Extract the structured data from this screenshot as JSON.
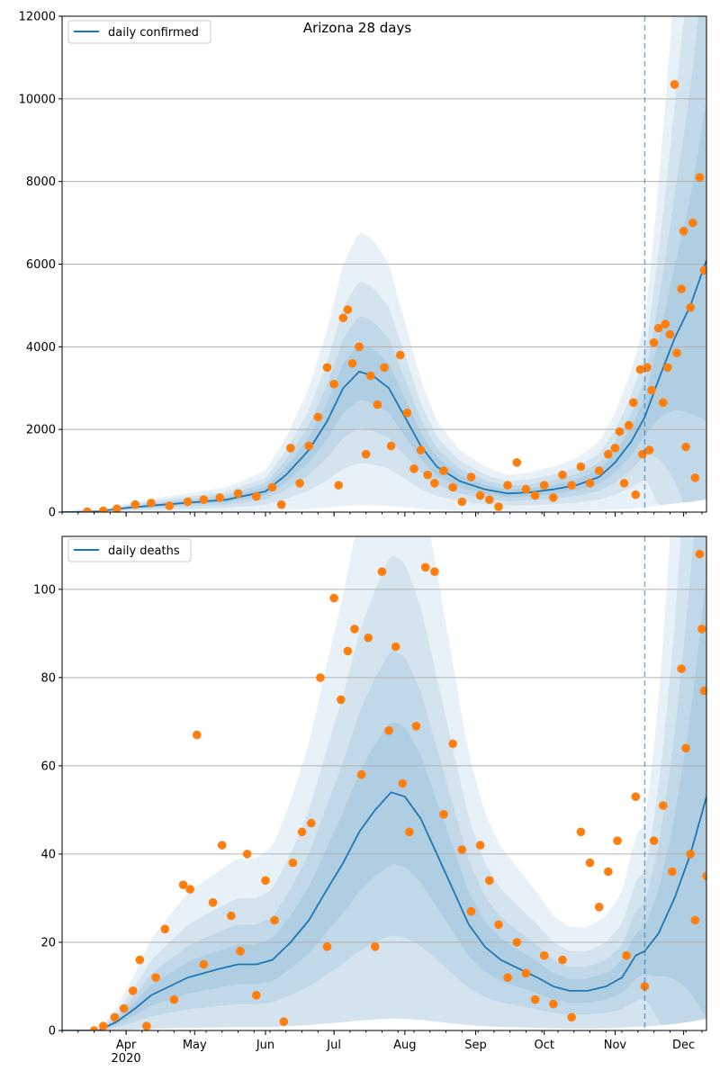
{
  "chart_data": [
    {
      "type": "line",
      "title": "Arizona 28 days",
      "xlabel": "",
      "ylabel": "",
      "ylim": [
        0,
        12000
      ],
      "yticks": [
        0,
        2000,
        4000,
        6000,
        8000,
        10000,
        12000
      ],
      "x_range": [
        "2020-03-04",
        "2020-12-11"
      ],
      "forecast_start": "2020-11-14",
      "grid": "horizontal",
      "legend": {
        "position": "top-left",
        "entries": [
          "daily confirmed"
        ]
      },
      "series": [
        {
          "name": "daily confirmed",
          "kind": "line",
          "points": [
            [
              "2020-03-04",
              0
            ],
            [
              "2020-03-20",
              20
            ],
            [
              "2020-04-01",
              100
            ],
            [
              "2020-04-15",
              170
            ],
            [
              "2020-05-01",
              240
            ],
            [
              "2020-05-15",
              300
            ],
            [
              "2020-06-01",
              500
            ],
            [
              "2020-06-10",
              900
            ],
            [
              "2020-06-20",
              1500
            ],
            [
              "2020-06-28",
              2200
            ],
            [
              "2020-07-05",
              3000
            ],
            [
              "2020-07-12",
              3400
            ],
            [
              "2020-07-18",
              3300
            ],
            [
              "2020-07-25",
              3000
            ],
            [
              "2020-08-01",
              2300
            ],
            [
              "2020-08-08",
              1600
            ],
            [
              "2020-08-15",
              1100
            ],
            [
              "2020-08-25",
              750
            ],
            [
              "2020-09-05",
              550
            ],
            [
              "2020-09-15",
              450
            ],
            [
              "2020-09-25",
              480
            ],
            [
              "2020-10-05",
              550
            ],
            [
              "2020-10-15",
              650
            ],
            [
              "2020-10-25",
              850
            ],
            [
              "2020-11-01",
              1200
            ],
            [
              "2020-11-08",
              1700
            ],
            [
              "2020-11-14",
              2300
            ],
            [
              "2020-11-20",
              3200
            ],
            [
              "2020-11-27",
              4200
            ],
            [
              "2020-12-04",
              5000
            ],
            [
              "2020-12-11",
              6100
            ]
          ]
        },
        {
          "name": "",
          "kind": "scatter",
          "points": [
            [
              "2020-03-15",
              10
            ],
            [
              "2020-03-22",
              30
            ],
            [
              "2020-03-28",
              80
            ],
            [
              "2020-04-05",
              180
            ],
            [
              "2020-04-12",
              220
            ],
            [
              "2020-04-20",
              150
            ],
            [
              "2020-04-28",
              250
            ],
            [
              "2020-05-05",
              300
            ],
            [
              "2020-05-12",
              350
            ],
            [
              "2020-05-20",
              450
            ],
            [
              "2020-05-28",
              380
            ],
            [
              "2020-06-04",
              600
            ],
            [
              "2020-06-08",
              180
            ],
            [
              "2020-06-12",
              1550
            ],
            [
              "2020-06-16",
              700
            ],
            [
              "2020-06-20",
              1600
            ],
            [
              "2020-06-24",
              2300
            ],
            [
              "2020-06-28",
              3500
            ],
            [
              "2020-07-01",
              3100
            ],
            [
              "2020-07-03",
              650
            ],
            [
              "2020-07-05",
              4700
            ],
            [
              "2020-07-07",
              4900
            ],
            [
              "2020-07-09",
              3600
            ],
            [
              "2020-07-12",
              4000
            ],
            [
              "2020-07-15",
              1400
            ],
            [
              "2020-07-17",
              3300
            ],
            [
              "2020-07-20",
              2600
            ],
            [
              "2020-07-23",
              3500
            ],
            [
              "2020-07-26",
              1600
            ],
            [
              "2020-07-30",
              3800
            ],
            [
              "2020-08-02",
              2400
            ],
            [
              "2020-08-05",
              1050
            ],
            [
              "2020-08-08",
              1500
            ],
            [
              "2020-08-11",
              900
            ],
            [
              "2020-08-14",
              700
            ],
            [
              "2020-08-18",
              1000
            ],
            [
              "2020-08-22",
              600
            ],
            [
              "2020-08-26",
              250
            ],
            [
              "2020-08-30",
              850
            ],
            [
              "2020-09-03",
              400
            ],
            [
              "2020-09-07",
              300
            ],
            [
              "2020-09-11",
              130
            ],
            [
              "2020-09-15",
              650
            ],
            [
              "2020-09-19",
              1200
            ],
            [
              "2020-09-23",
              550
            ],
            [
              "2020-09-27",
              400
            ],
            [
              "2020-10-01",
              650
            ],
            [
              "2020-10-05",
              350
            ],
            [
              "2020-10-09",
              900
            ],
            [
              "2020-10-13",
              650
            ],
            [
              "2020-10-17",
              1100
            ],
            [
              "2020-10-21",
              700
            ],
            [
              "2020-10-25",
              1000
            ],
            [
              "2020-10-29",
              1400
            ],
            [
              "2020-11-01",
              1550
            ],
            [
              "2020-11-03",
              1950
            ],
            [
              "2020-11-05",
              700
            ],
            [
              "2020-11-07",
              2100
            ],
            [
              "2020-11-09",
              2650
            ],
            [
              "2020-11-10",
              420
            ],
            [
              "2020-11-12",
              3450
            ],
            [
              "2020-11-13",
              1400
            ],
            [
              "2020-11-15",
              3500
            ],
            [
              "2020-11-16",
              1500
            ],
            [
              "2020-11-17",
              2950
            ],
            [
              "2020-11-18",
              4100
            ],
            [
              "2020-11-20",
              4450
            ],
            [
              "2020-11-22",
              2650
            ],
            [
              "2020-11-23",
              4550
            ],
            [
              "2020-11-24",
              3500
            ],
            [
              "2020-11-25",
              4300
            ],
            [
              "2020-11-27",
              10350
            ],
            [
              "2020-11-28",
              3850
            ],
            [
              "2020-11-30",
              5400
            ],
            [
              "2020-12-01",
              6800
            ],
            [
              "2020-12-02",
              1580
            ],
            [
              "2020-12-04",
              4950
            ],
            [
              "2020-12-05",
              7000
            ],
            [
              "2020-12-06",
              830
            ],
            [
              "2020-12-08",
              8100
            ],
            [
              "2020-12-10",
              5850
            ]
          ]
        }
      ]
    },
    {
      "type": "line",
      "title": "",
      "xlabel": "",
      "ylabel": "",
      "ylim": [
        0,
        112
      ],
      "yticks": [
        0,
        20,
        40,
        60,
        80,
        100
      ],
      "x_range": [
        "2020-03-04",
        "2020-12-11"
      ],
      "x_tick_labels": [
        "Apr\n2020",
        "May",
        "Jun",
        "Jul",
        "Aug",
        "Sep",
        "Oct",
        "Nov",
        "Dec"
      ],
      "forecast_start": "2020-11-14",
      "grid": "horizontal",
      "legend": {
        "position": "top-left",
        "entries": [
          "daily deaths"
        ]
      },
      "series": [
        {
          "name": "daily deaths",
          "kind": "line",
          "points": [
            [
              "2020-03-04",
              0
            ],
            [
              "2020-03-20",
              0
            ],
            [
              "2020-03-28",
              2
            ],
            [
              "2020-04-05",
              5
            ],
            [
              "2020-04-12",
              8
            ],
            [
              "2020-04-20",
              10
            ],
            [
              "2020-04-28",
              12
            ],
            [
              "2020-05-05",
              13
            ],
            [
              "2020-05-12",
              14
            ],
            [
              "2020-05-20",
              15
            ],
            [
              "2020-05-28",
              15
            ],
            [
              "2020-06-04",
              16
            ],
            [
              "2020-06-12",
              20
            ],
            [
              "2020-06-20",
              25
            ],
            [
              "2020-06-28",
              32
            ],
            [
              "2020-07-05",
              38
            ],
            [
              "2020-07-12",
              45
            ],
            [
              "2020-07-19",
              50
            ],
            [
              "2020-07-26",
              54
            ],
            [
              "2020-08-01",
              53
            ],
            [
              "2020-08-08",
              48
            ],
            [
              "2020-08-15",
              40
            ],
            [
              "2020-08-22",
              32
            ],
            [
              "2020-08-29",
              24
            ],
            [
              "2020-09-05",
              19
            ],
            [
              "2020-09-12",
              16
            ],
            [
              "2020-09-20",
              14
            ],
            [
              "2020-09-28",
              12
            ],
            [
              "2020-10-05",
              10
            ],
            [
              "2020-10-12",
              9
            ],
            [
              "2020-10-20",
              9
            ],
            [
              "2020-10-28",
              10
            ],
            [
              "2020-11-04",
              12
            ],
            [
              "2020-11-10",
              17
            ],
            [
              "2020-11-14",
              18
            ],
            [
              "2020-11-20",
              22
            ],
            [
              "2020-11-27",
              30
            ],
            [
              "2020-12-04",
              40
            ],
            [
              "2020-12-11",
              53
            ]
          ]
        },
        {
          "name": "",
          "kind": "scatter",
          "points": [
            [
              "2020-03-18",
              0
            ],
            [
              "2020-03-22",
              1
            ],
            [
              "2020-03-27",
              3
            ],
            [
              "2020-03-31",
              5
            ],
            [
              "2020-04-04",
              9
            ],
            [
              "2020-04-07",
              16
            ],
            [
              "2020-04-10",
              1
            ],
            [
              "2020-04-14",
              12
            ],
            [
              "2020-04-18",
              23
            ],
            [
              "2020-04-22",
              7
            ],
            [
              "2020-04-26",
              33
            ],
            [
              "2020-04-29",
              32
            ],
            [
              "2020-05-02",
              67
            ],
            [
              "2020-05-05",
              15
            ],
            [
              "2020-05-09",
              29
            ],
            [
              "2020-05-13",
              42
            ],
            [
              "2020-05-17",
              26
            ],
            [
              "2020-05-21",
              18
            ],
            [
              "2020-05-24",
              40
            ],
            [
              "2020-05-28",
              8
            ],
            [
              "2020-06-01",
              34
            ],
            [
              "2020-06-05",
              25
            ],
            [
              "2020-06-09",
              2
            ],
            [
              "2020-06-13",
              38
            ],
            [
              "2020-06-17",
              45
            ],
            [
              "2020-06-21",
              47
            ],
            [
              "2020-06-25",
              80
            ],
            [
              "2020-06-28",
              19
            ],
            [
              "2020-07-01",
              98
            ],
            [
              "2020-07-04",
              75
            ],
            [
              "2020-07-07",
              86
            ],
            [
              "2020-07-10",
              91
            ],
            [
              "2020-07-13",
              58
            ],
            [
              "2020-07-16",
              89
            ],
            [
              "2020-07-19",
              19
            ],
            [
              "2020-07-22",
              104
            ],
            [
              "2020-07-25",
              68
            ],
            [
              "2020-07-28",
              87
            ],
            [
              "2020-07-31",
              56
            ],
            [
              "2020-08-03",
              45
            ],
            [
              "2020-08-06",
              69
            ],
            [
              "2020-08-10",
              105
            ],
            [
              "2020-08-14",
              104
            ],
            [
              "2020-08-18",
              49
            ],
            [
              "2020-08-22",
              65
            ],
            [
              "2020-08-26",
              41
            ],
            [
              "2020-08-30",
              27
            ],
            [
              "2020-09-03",
              42
            ],
            [
              "2020-09-07",
              34
            ],
            [
              "2020-09-11",
              24
            ],
            [
              "2020-09-15",
              12
            ],
            [
              "2020-09-19",
              20
            ],
            [
              "2020-09-23",
              13
            ],
            [
              "2020-09-27",
              7
            ],
            [
              "2020-10-01",
              17
            ],
            [
              "2020-10-05",
              6
            ],
            [
              "2020-10-09",
              16
            ],
            [
              "2020-10-13",
              3
            ],
            [
              "2020-10-17",
              45
            ],
            [
              "2020-10-21",
              38
            ],
            [
              "2020-10-25",
              28
            ],
            [
              "2020-10-29",
              36
            ],
            [
              "2020-11-02",
              43
            ],
            [
              "2020-11-06",
              17
            ],
            [
              "2020-11-10",
              53
            ],
            [
              "2020-11-14",
              10
            ],
            [
              "2020-11-18",
              43
            ],
            [
              "2020-11-22",
              51
            ],
            [
              "2020-11-26",
              36
            ],
            [
              "2020-11-30",
              82
            ],
            [
              "2020-12-02",
              64
            ],
            [
              "2020-12-04",
              40
            ],
            [
              "2020-12-06",
              25
            ],
            [
              "2020-12-08",
              108
            ],
            [
              "2020-12-09",
              91
            ],
            [
              "2020-12-10",
              77
            ],
            [
              "2020-12-11",
              35
            ]
          ]
        }
      ]
    }
  ],
  "colors": {
    "line": "#1f77b4",
    "points": "#ff7f0e",
    "band": "#1f77b4",
    "grid": "#b0b0b0",
    "forecast_line": "#1f77b4"
  }
}
